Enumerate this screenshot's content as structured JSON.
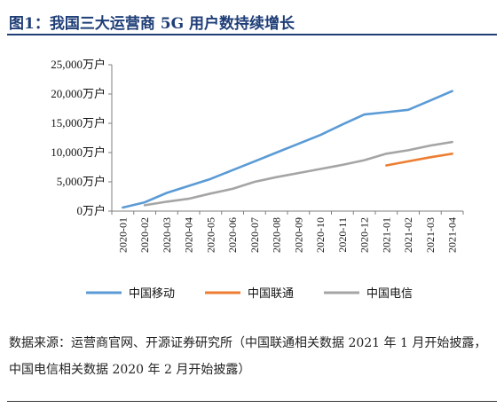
{
  "figure": {
    "title": "图1：我国三大运营商 5G 用户数持续增长",
    "source": "数据来源：运营商官网、开源证券研究所（中国联通相关数据 2021 年 1 月开始披露，中国电信相关数据 2020 年 2 月开始披露）"
  },
  "colors": {
    "title": "#1f3e77",
    "china_mobile": "#5b9bd5",
    "china_unicom": "#ed7d31",
    "china_telecom": "#a5a5a5",
    "axis": "#7f7f7f"
  },
  "chart_data": {
    "type": "line",
    "title": "",
    "xlabel": "",
    "ylabel": "",
    "y_unit": "万户",
    "ylim": [
      0,
      25000
    ],
    "y_ticks": [
      0,
      5000,
      10000,
      15000,
      20000,
      25000
    ],
    "y_tick_labels": [
      "0万户",
      "5,000万户",
      "10,000万户",
      "15,000万户",
      "20,000万户",
      "25,000万户"
    ],
    "grid": false,
    "legend_position": "bottom",
    "categories": [
      "2020-01",
      "2020-02",
      "2020-03",
      "2020-04",
      "2020-05",
      "2020-06",
      "2020-07",
      "2020-08",
      "2020-09",
      "2020-10",
      "2020-11",
      "2020-12",
      "2021-01",
      "2021-02",
      "2021-03",
      "2021-04"
    ],
    "series": [
      {
        "name": "中国移动",
        "color": "#5b9bd5",
        "values": [
          600,
          1500,
          3100,
          4300,
          5500,
          7000,
          8500,
          10000,
          11500,
          13000,
          14800,
          16500,
          16900,
          17300,
          18900,
          20500
        ]
      },
      {
        "name": "中国联通",
        "color": "#ed7d31",
        "values": [
          null,
          null,
          null,
          null,
          null,
          null,
          null,
          null,
          null,
          null,
          null,
          null,
          7800,
          8500,
          9200,
          9800
        ]
      },
      {
        "name": "中国电信",
        "color": "#a5a5a5",
        "values": [
          null,
          1000,
          1600,
          2100,
          3000,
          3800,
          5000,
          5800,
          6500,
          7200,
          7900,
          8700,
          9800,
          10400,
          11200,
          11800
        ]
      }
    ]
  }
}
